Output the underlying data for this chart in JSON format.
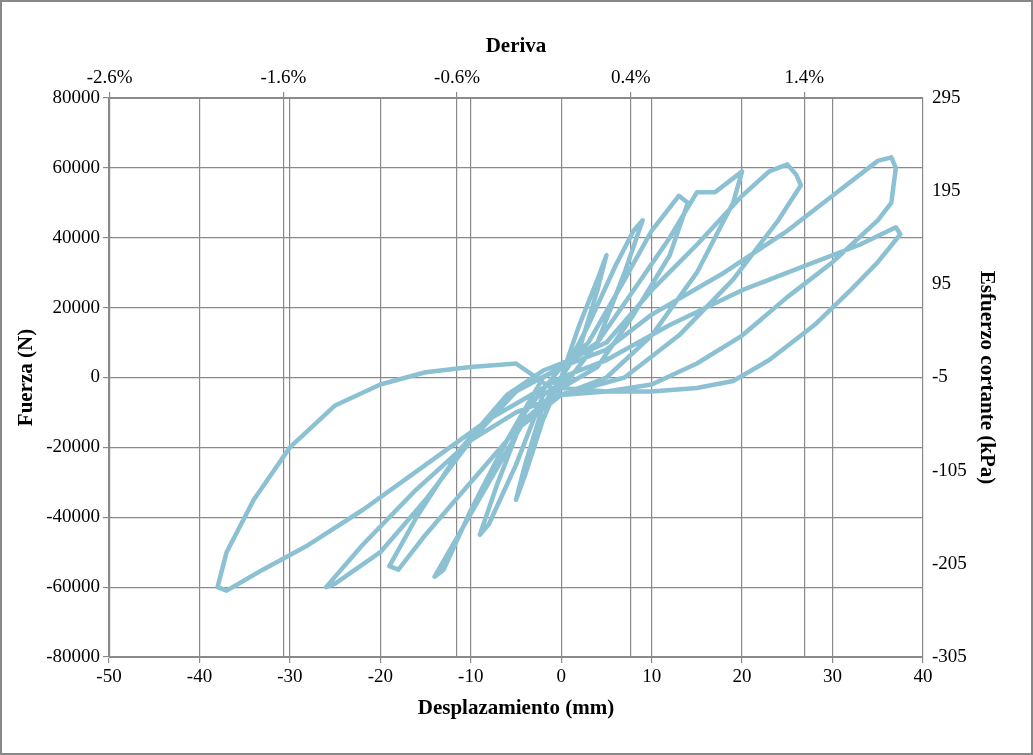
{
  "chart_data": {
    "type": "line",
    "xlabel": "Desplazamiento (mm)",
    "ylabel": "Fuerza (N)",
    "y2label": "Esfuerzo cortante (kPa)",
    "x2label": "Deriva",
    "xlim": [
      -50,
      40
    ],
    "xticks": [
      -50,
      -40,
      -30,
      -20,
      -10,
      0,
      10,
      20,
      30,
      40
    ],
    "ylim": [
      -80000,
      80000
    ],
    "yticks": [
      -80000,
      -60000,
      -40000,
      -20000,
      0,
      20000,
      40000,
      60000,
      80000
    ],
    "y2lim": [
      -305,
      295
    ],
    "y2ticks": [
      -305,
      -205,
      -105,
      -5,
      95,
      195,
      295
    ],
    "x2lim": [
      -2.604,
      2.083
    ],
    "x2ticks": [
      {
        "value": -2.6,
        "label": "-2.6%"
      },
      {
        "value": -1.6,
        "label": "-1.6%"
      },
      {
        "value": -0.6,
        "label": "-0.6%"
      },
      {
        "value": 0.4,
        "label": "0.4%"
      },
      {
        "value": 1.4,
        "label": "1.4%"
      }
    ],
    "grid": true,
    "legend": false,
    "marker": "none",
    "line_style": "solid",
    "series": [
      {
        "color": "#8bc1d3",
        "x": [
          0,
          2,
          4,
          5,
          4,
          2,
          0,
          -2,
          -4,
          -5,
          -4,
          -2,
          0,
          3,
          6,
          8,
          9,
          7,
          4,
          1,
          -2,
          -5,
          -8,
          -9,
          -7,
          -4,
          0,
          3,
          7,
          10,
          13,
          14,
          12,
          8,
          4,
          0,
          -4,
          -8,
          -12,
          -14,
          -13,
          -10,
          -6,
          -2,
          0,
          4,
          8,
          12,
          15,
          17,
          19,
          20,
          19,
          15,
          10,
          5,
          0,
          -5,
          -10,
          -15,
          -18,
          -19,
          -16,
          -11,
          -6,
          -2,
          0,
          5,
          10,
          15,
          20,
          23,
          25,
          26,
          26.5,
          24,
          19,
          13,
          7,
          0,
          -5,
          -10,
          -16,
          -22,
          -26,
          -25,
          -20,
          -15,
          -10,
          -5,
          0,
          5,
          10,
          18,
          25,
          30,
          35,
          36.5,
          37,
          36.5,
          35,
          30,
          25,
          20,
          15,
          10,
          5,
          0,
          -5,
          -10,
          -15,
          -20,
          -25,
          -30,
          -34,
          -37,
          -38,
          -37,
          -33,
          -28,
          -22,
          -15,
          -8,
          0,
          5,
          12,
          20,
          27,
          33,
          37,
          37.5,
          35,
          32,
          28,
          23,
          19,
          15,
          10,
          5,
          0
        ],
        "values": [
          0,
          15000,
          28000,
          35000,
          25000,
          8000,
          0,
          -12000,
          -28000,
          -35000,
          -25000,
          -8000,
          0,
          15000,
          32000,
          42000,
          45000,
          30000,
          10000,
          0,
          -5000,
          -25000,
          -42000,
          -45000,
          -30000,
          -10000,
          3000,
          10000,
          28000,
          42000,
          52000,
          50000,
          35000,
          18000,
          3000,
          -3000,
          -12000,
          -30000,
          -48000,
          -57000,
          -55000,
          -38000,
          -18000,
          0,
          3000,
          10000,
          25000,
          40000,
          53000,
          53000,
          57000,
          59000,
          50000,
          30000,
          12000,
          0,
          -5000,
          -15000,
          -30000,
          -45000,
          -55000,
          -54000,
          -40000,
          -20000,
          -5000,
          2000,
          4000,
          10000,
          25000,
          38000,
          52000,
          59000,
          61000,
          58000,
          55000,
          45000,
          28000,
          12000,
          0,
          -5000,
          -10000,
          -18000,
          -32000,
          -48000,
          -60000,
          -59000,
          -50000,
          -35000,
          -18000,
          -4000,
          3000,
          8000,
          18000,
          30000,
          42000,
          52000,
          62000,
          63000,
          60000,
          50000,
          45000,
          33000,
          23000,
          12000,
          4000,
          -2000,
          -4000,
          -5000,
          4000,
          3000,
          1500,
          -2000,
          -8000,
          -20000,
          -35000,
          -50000,
          -60000,
          -61000,
          -55000,
          -48000,
          -38000,
          -25000,
          -12000,
          0,
          5000,
          15000,
          25000,
          32000,
          38000,
          43000,
          41000,
          33000,
          25000,
          15000,
          5000,
          -1000,
          -3000,
          -4000,
          -4000,
          -3000
        ]
      }
    ]
  }
}
